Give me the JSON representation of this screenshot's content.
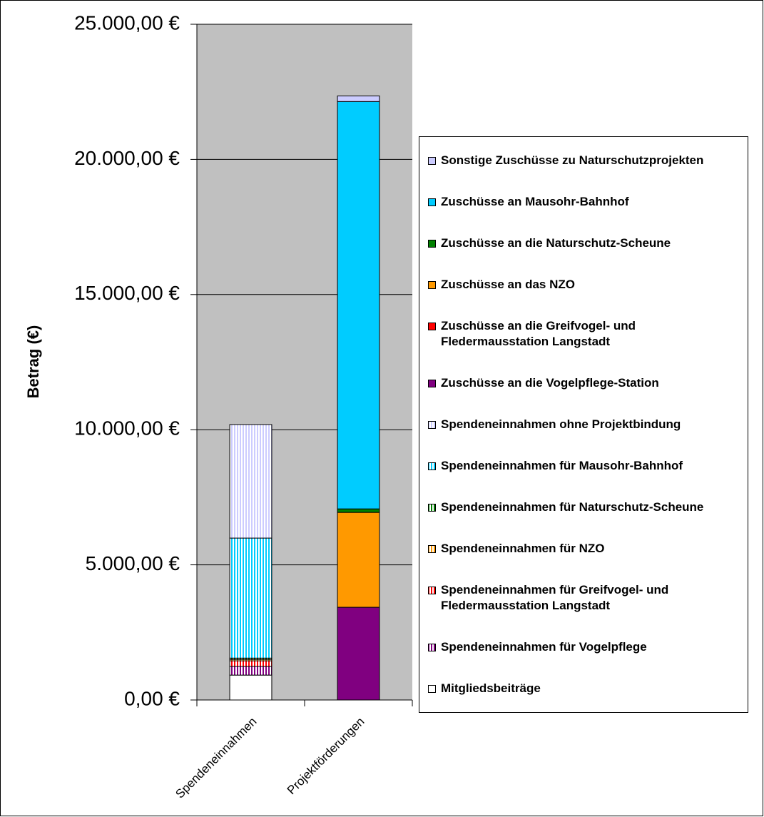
{
  "chart_data": {
    "type": "stacked-bar",
    "y_label": "Betrag (€)",
    "categories": [
      "Spendeneinnahmen",
      "Projektförderungen"
    ],
    "ylim": [
      0,
      25000
    ],
    "yticks": [
      {
        "value": 0,
        "label": "0,00 €"
      },
      {
        "value": 5000,
        "label": "5.000,00 €"
      },
      {
        "value": 10000,
        "label": "10.000,00 €"
      },
      {
        "value": 15000,
        "label": "15.000,00 €"
      },
      {
        "value": 20000,
        "label": "20.000,00 €"
      },
      {
        "value": 25000,
        "label": "25.000,00 €"
      }
    ],
    "grid": true,
    "legend": "right",
    "series": [
      {
        "name": "Mitgliedsbeiträge",
        "color": "#ffffff",
        "values": [
          920,
          0
        ]
      },
      {
        "name": "Spendeneinnahmen für Vogelpflege",
        "color": "#800080",
        "pattern": "vertical-stripes",
        "values": [
          320,
          0
        ]
      },
      {
        "name": "Spendeneinnahmen für Greifvogel- und\nFledermausstation Langstadt",
        "color": "#ff0000",
        "pattern": "vertical-stripes",
        "values": [
          210,
          0
        ]
      },
      {
        "name": "Spendeneinnahmen für NZO",
        "color": "#ff9900",
        "pattern": "vertical-stripes",
        "values": [
          50,
          0
        ]
      },
      {
        "name": "Spendeneinnahmen für Naturschutz-Scheune",
        "color": "#008000",
        "pattern": "vertical-stripes",
        "values": [
          50,
          0
        ]
      },
      {
        "name": "Spendeneinnahmen für Mausohr-Bahnhof",
        "color": "#00ccff",
        "pattern": "vertical-stripes",
        "values": [
          4440,
          0
        ]
      },
      {
        "name": "Spendeneinnahmen ohne Projektbindung",
        "color": "#ccccff",
        "pattern": "vertical-stripes",
        "values": [
          4200,
          0
        ]
      },
      {
        "name": "Zuschüsse an die Vogelpflege-Station",
        "color": "#800080",
        "values": [
          0,
          3430
        ]
      },
      {
        "name": "Zuschüsse an die Greifvogel- und\nFledermausstation Langstadt",
        "color": "#ff0000",
        "values": [
          0,
          0
        ]
      },
      {
        "name": "Zuschüsse an das NZO",
        "color": "#ff9900",
        "values": [
          0,
          3510
        ]
      },
      {
        "name": "Zuschüsse an die Naturschutz-Scheune",
        "color": "#008000",
        "values": [
          0,
          130
        ]
      },
      {
        "name": "Zuschüsse an Mausohr-Bahnhof",
        "color": "#00ccff",
        "values": [
          0,
          15070
        ]
      },
      {
        "name": "Sonstige Zuschüsse zu Naturschutzprojekten",
        "color": "#ccccff",
        "values": [
          0,
          210
        ]
      }
    ]
  }
}
